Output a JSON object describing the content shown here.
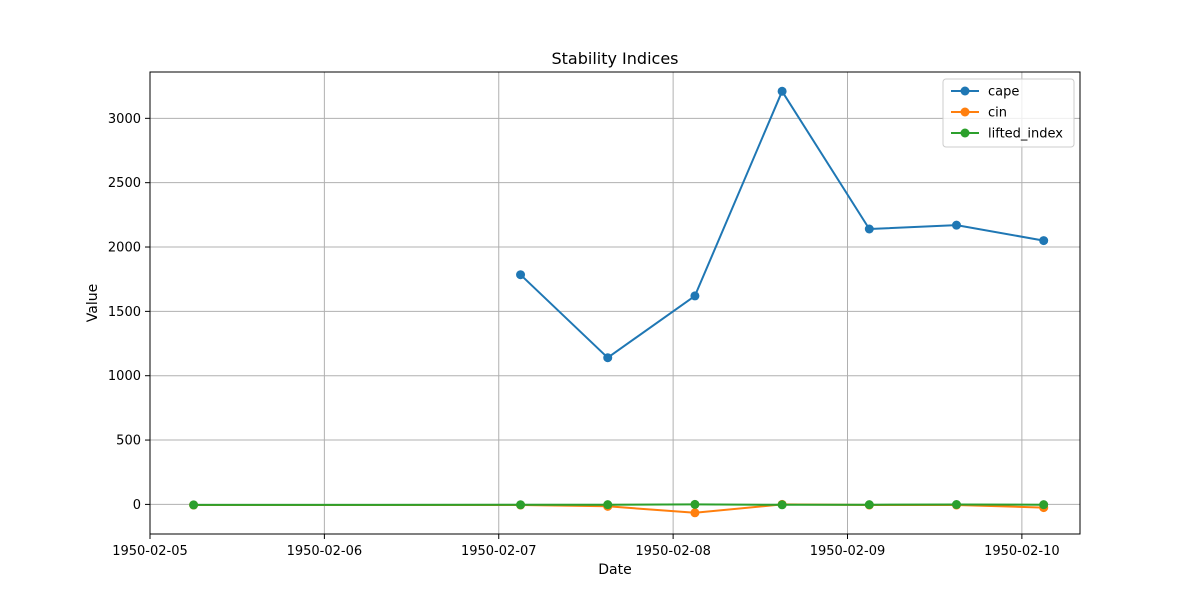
{
  "chart_data": {
    "type": "line",
    "title": "Stability Indices",
    "xlabel": "Date",
    "ylabel": "Value",
    "x_tick_labels": [
      "1950-02-05",
      "1950-02-06",
      "1950-02-07",
      "1950-02-08",
      "1950-02-09",
      "1950-02-10"
    ],
    "y_tick_labels": [
      "0",
      "500",
      "1000",
      "1500",
      "2000",
      "2500",
      "3000"
    ],
    "y_ticks": [
      0,
      500,
      1000,
      1500,
      2000,
      2500,
      3000
    ],
    "xlim": [
      "1950-02-05 00:00",
      "1950-02-10 08:00"
    ],
    "ylim": [
      -230,
      3360
    ],
    "grid": true,
    "legend_position": "top-right",
    "series": [
      {
        "name": "cape",
        "color": "#1f77b4",
        "points": [
          {
            "x": "1950-02-07 03:00",
            "y": 1785
          },
          {
            "x": "1950-02-07 15:00",
            "y": 1140
          },
          {
            "x": "1950-02-08 03:00",
            "y": 1620
          },
          {
            "x": "1950-02-08 15:00",
            "y": 3210
          },
          {
            "x": "1950-02-09 03:00",
            "y": 2140
          },
          {
            "x": "1950-02-09 15:00",
            "y": 2170
          },
          {
            "x": "1950-02-10 03:00",
            "y": 2050
          }
        ]
      },
      {
        "name": "cin",
        "color": "#ff7f0e",
        "points": [
          {
            "x": "1950-02-05 06:00",
            "y": -5
          },
          {
            "x": "1950-02-07 03:00",
            "y": -5
          },
          {
            "x": "1950-02-07 15:00",
            "y": -15
          },
          {
            "x": "1950-02-08 03:00",
            "y": -65
          },
          {
            "x": "1950-02-08 15:00",
            "y": 0
          },
          {
            "x": "1950-02-09 03:00",
            "y": -5
          },
          {
            "x": "1950-02-09 15:00",
            "y": -5
          },
          {
            "x": "1950-02-10 03:00",
            "y": -25
          }
        ]
      },
      {
        "name": "lifted_index",
        "color": "#2ca02c",
        "points": [
          {
            "x": "1950-02-05 06:00",
            "y": -4
          },
          {
            "x": "1950-02-07 03:00",
            "y": -3
          },
          {
            "x": "1950-02-07 15:00",
            "y": -2
          },
          {
            "x": "1950-02-08 03:00",
            "y": 0
          },
          {
            "x": "1950-02-08 15:00",
            "y": -3
          },
          {
            "x": "1950-02-09 03:00",
            "y": -2
          },
          {
            "x": "1950-02-09 15:00",
            "y": -1
          },
          {
            "x": "1950-02-10 03:00",
            "y": -2
          }
        ]
      }
    ]
  }
}
